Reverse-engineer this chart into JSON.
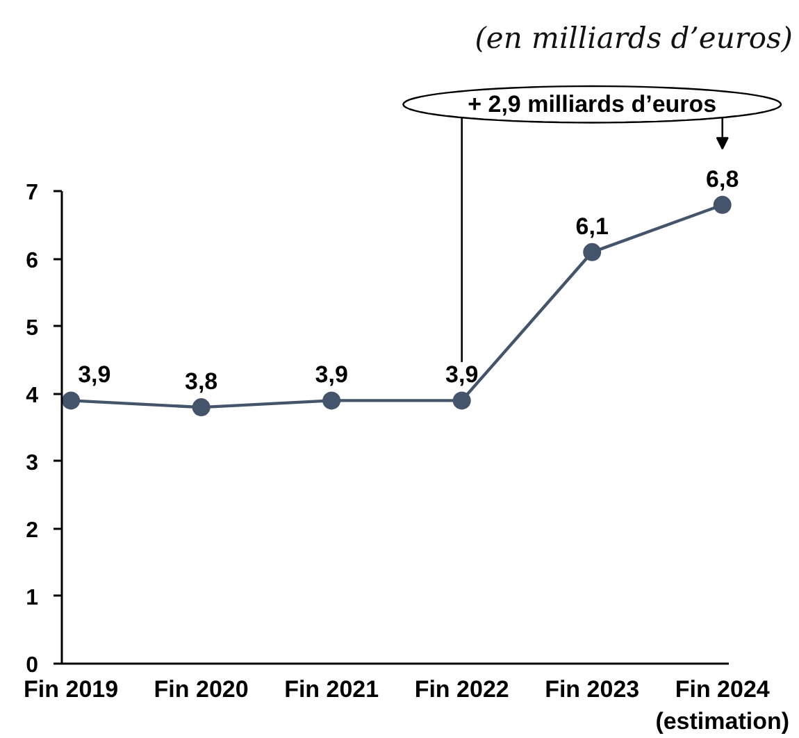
{
  "chart_data": {
    "type": "line",
    "title": "(en milliards d’euros)",
    "categories": [
      "Fin 2019",
      "Fin 2020",
      "Fin 2021",
      "Fin 2022",
      "Fin 2023",
      "Fin 2024\n(estimation)"
    ],
    "values": [
      3.9,
      3.8,
      3.9,
      3.9,
      6.1,
      6.8
    ],
    "value_labels": [
      "3,9",
      "3,8",
      "3,9",
      "3,9",
      "6,1",
      "6,8"
    ],
    "color": "#44546a",
    "ylim": [
      0,
      7
    ],
    "yticks": [
      0,
      1,
      2,
      3,
      4,
      5,
      6,
      7
    ],
    "marker": "circle",
    "line_style": "solid",
    "annotations": [
      "+ 2,9 milliards d’euros"
    ]
  }
}
